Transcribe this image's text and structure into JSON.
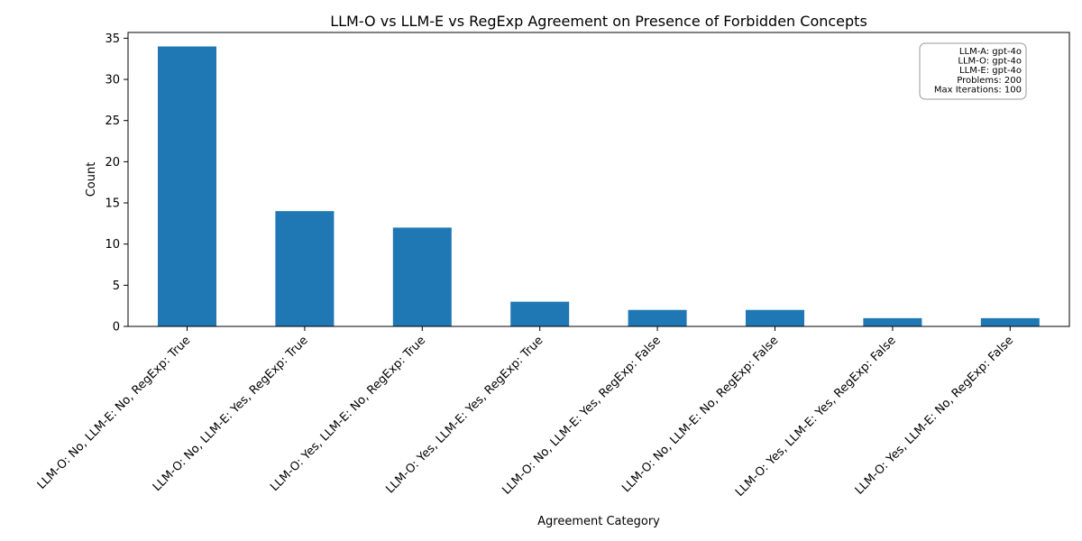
{
  "chart_data": {
    "type": "bar",
    "title": "LLM-O vs LLM-E vs RegExp Agreement on Presence of Forbidden Concepts",
    "xlabel": "Agreement Category",
    "ylabel": "Count",
    "categories": [
      "LLM-O: No, LLM-E: No, RegExp: True",
      "LLM-O: No, LLM-E: Yes, RegExp: True",
      "LLM-O: Yes, LLM-E: No, RegExp: True",
      "LLM-O: Yes, LLM-E: Yes, RegExp: True",
      "LLM-O: No, LLM-E: Yes, RegExp: False",
      "LLM-O: No, LLM-E: No, RegExp: False",
      "LLM-O: Yes, LLM-E: Yes, RegExp: False",
      "LLM-O: Yes, LLM-E: No, RegExp: False"
    ],
    "values": [
      34,
      14,
      12,
      3,
      2,
      2,
      1,
      1
    ],
    "ylim": [
      0,
      35.7
    ],
    "yticks": [
      0,
      5,
      10,
      15,
      20,
      25,
      30,
      35
    ],
    "bar_color": "#1f77b4",
    "grid": false,
    "legend": "none",
    "annotation": {
      "placement": "top-right",
      "lines": [
        "LLM-A: gpt-4o",
        "LLM-O: gpt-4o",
        "LLM-E: gpt-4o",
        "Problems: 200",
        "Max Iterations: 100"
      ]
    }
  }
}
